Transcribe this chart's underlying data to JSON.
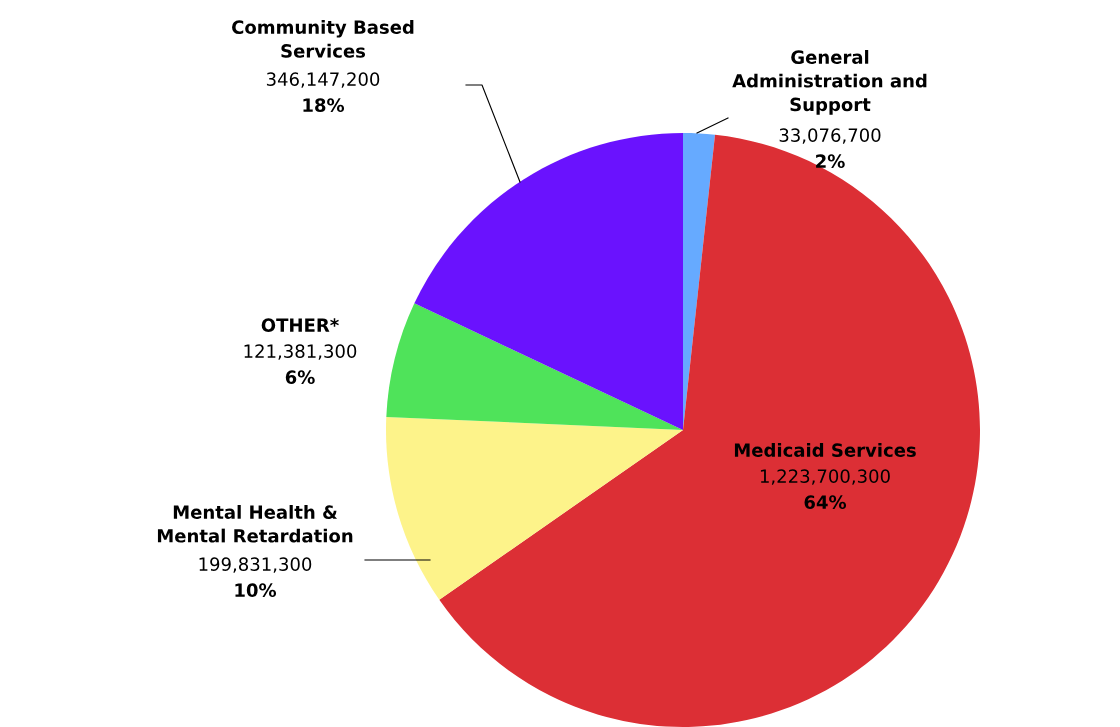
{
  "chart_data": {
    "type": "pie",
    "categories": [
      "General\nAdministration and\nSupport",
      "Medicaid Services",
      "Mental Health &\nMental Retardation",
      "OTHER*",
      "Community Based\nServices"
    ],
    "values": [
      33076700,
      1223700300,
      199831300,
      121381300,
      346147200
    ],
    "colors": [
      "#66aaff",
      "#dc2f35",
      "#fdf38a",
      "#4fe35a",
      "#6a12fe"
    ],
    "value_labels": [
      "33,076,700",
      "1,223,700,300",
      "199,831,300",
      "121,381,300",
      "346,147,200"
    ],
    "annotations": [
      {
        "text": "2%",
        "x": "General\nAdministration and\nSupport"
      },
      {
        "text": "64%",
        "x": "Medicaid Services"
      },
      {
        "text": "10%",
        "x": "Mental Health &\nMental Retardation"
      },
      {
        "text": "6%",
        "x": "OTHER*"
      },
      {
        "text": "18%",
        "x": "Community Based\nServices"
      }
    ],
    "legend": false
  }
}
